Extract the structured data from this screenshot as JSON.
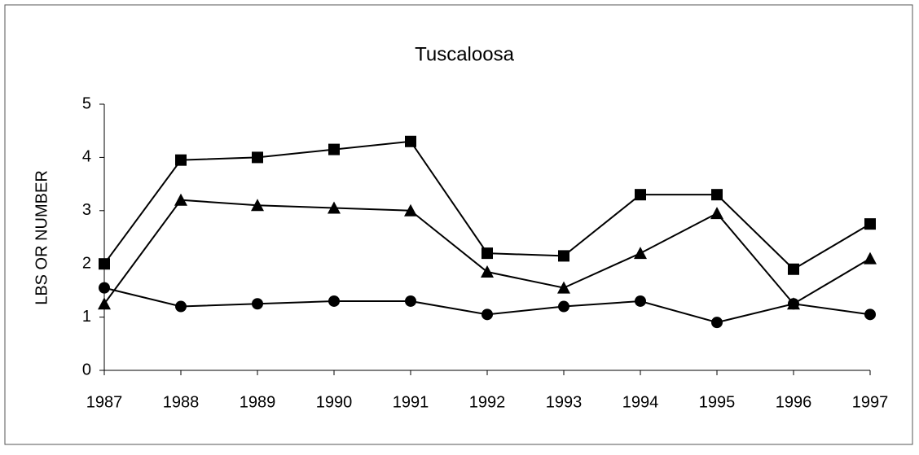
{
  "chart_data": {
    "type": "line",
    "title": "Tuscaloosa",
    "ylabel": "LBS OR NUMBER",
    "categories": [
      "1987",
      "1988",
      "1989",
      "1990",
      "1991",
      "1992",
      "1993",
      "1994",
      "1995",
      "1996",
      "1997"
    ],
    "series": [
      {
        "color": "#000000",
        "marker": "square",
        "values": [
          2.0,
          3.95,
          4.0,
          4.15,
          4.3,
          2.2,
          2.15,
          3.3,
          3.3,
          1.9,
          2.75
        ]
      },
      {
        "color": "#000000",
        "marker": "triangle",
        "values": [
          1.25,
          3.2,
          3.1,
          3.05,
          3.0,
          1.85,
          1.55,
          2.2,
          2.95,
          1.25,
          2.1
        ]
      },
      {
        "color": "#000000",
        "marker": "circle",
        "values": [
          1.55,
          1.2,
          1.25,
          1.3,
          1.3,
          1.05,
          1.2,
          1.3,
          0.9,
          1.25,
          1.05
        ]
      }
    ],
    "ylim": [
      0,
      5
    ],
    "yticks": [
      0,
      1,
      2,
      3,
      4,
      5
    ],
    "grid": false
  }
}
